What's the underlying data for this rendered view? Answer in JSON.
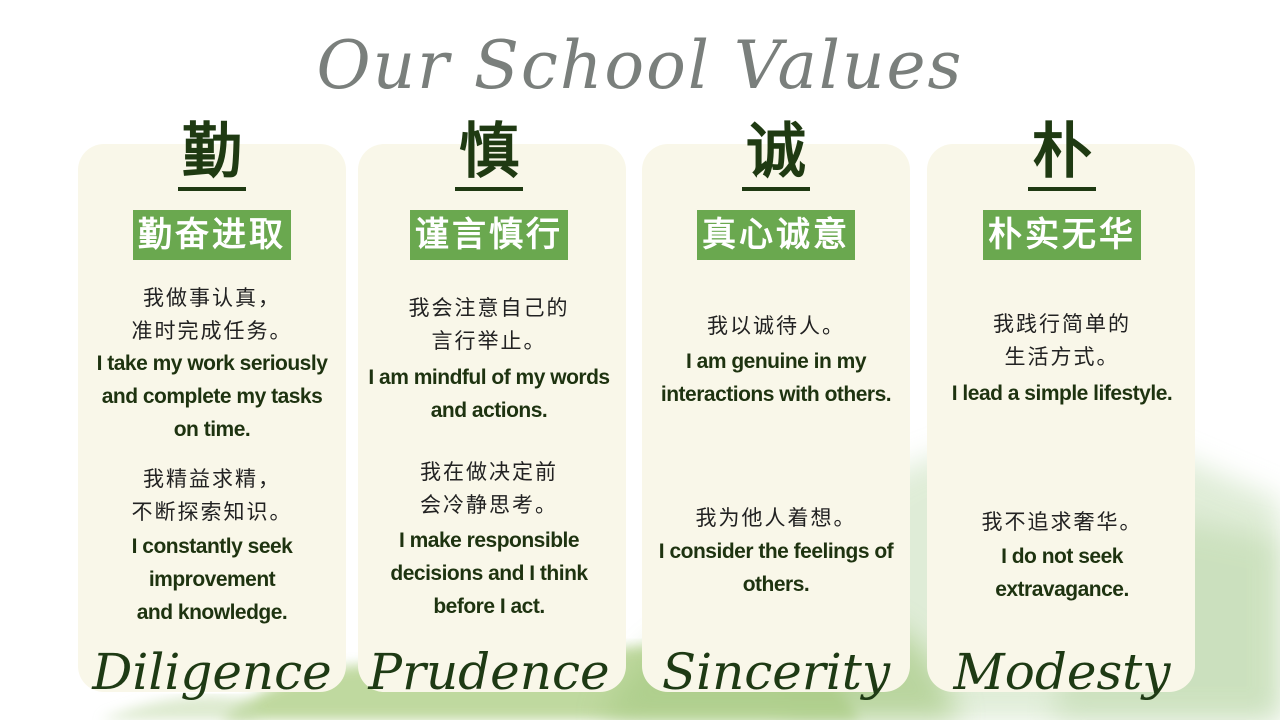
{
  "title": "Our School Values",
  "accent_color": "#6aa84f",
  "text_color": "#1e3310",
  "values": [
    {
      "char": "勤",
      "idiom": "勤奋进取",
      "zh1": "我做事认真，\n准时完成任务。",
      "en1": "I take my work seriously\nand complete my tasks\non time.",
      "zh2": "我精益求精，\n不断探索知识。",
      "en2": "I constantly seek\nimprovement\nand knowledge.",
      "name": "Diligence"
    },
    {
      "char": "慎",
      "idiom": "谨言慎行",
      "zh1": "我会注意自己的\n言行举止。",
      "en1": "I am mindful of my words\nand actions.",
      "zh2": "我在做决定前\n会冷静思考。",
      "en2": "I make responsible\ndecisions and I think\nbefore I act.",
      "name": "Prudence"
    },
    {
      "char": "诚",
      "idiom": "真心诚意",
      "zh1": "我以诚待人。",
      "en1": "I am genuine in my\ninteractions with others.",
      "zh2": "我为他人着想。",
      "en2": "I consider the feelings of\nothers.",
      "name": "Sincerity"
    },
    {
      "char": "朴",
      "idiom": "朴实无华",
      "zh1": "我践行简单的\n生活方式。",
      "en1": "I lead a simple lifestyle.",
      "zh2": "我不追求奢华。",
      "en2": "I do not seek\nextravagance.",
      "name": "Modesty"
    }
  ]
}
